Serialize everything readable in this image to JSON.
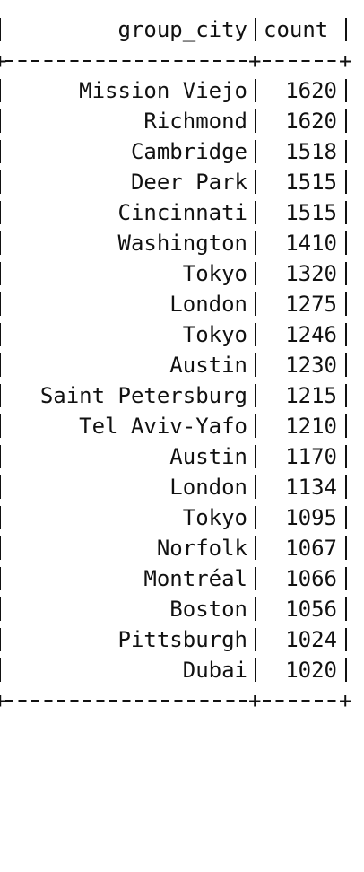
{
  "table": {
    "header": {
      "group_city": "group_city",
      "count": "count"
    },
    "separator_char": "+",
    "rows": [
      {
        "group_city": "Mission Viejo",
        "count": "1620"
      },
      {
        "group_city": "Richmond",
        "count": "1620"
      },
      {
        "group_city": "Cambridge",
        "count": "1518"
      },
      {
        "group_city": "Deer Park",
        "count": "1515"
      },
      {
        "group_city": "Cincinnati",
        "count": "1515"
      },
      {
        "group_city": "Washington",
        "count": "1410"
      },
      {
        "group_city": "Tokyo",
        "count": "1320"
      },
      {
        "group_city": "London",
        "count": "1275"
      },
      {
        "group_city": "Tokyo",
        "count": "1246"
      },
      {
        "group_city": "Austin",
        "count": "1230"
      },
      {
        "group_city": "Saint Petersburg",
        "count": "1215"
      },
      {
        "group_city": "Tel Aviv-Yafo",
        "count": "1210"
      },
      {
        "group_city": "Austin",
        "count": "1170"
      },
      {
        "group_city": "London",
        "count": "1134"
      },
      {
        "group_city": "Tokyo",
        "count": "1095"
      },
      {
        "group_city": "Norfolk",
        "count": "1067"
      },
      {
        "group_city": "Montréal",
        "count": "1066"
      },
      {
        "group_city": "Boston",
        "count": "1056"
      },
      {
        "group_city": "Pittsburgh",
        "count": "1024"
      },
      {
        "group_city": "Dubai",
        "count": "1020"
      }
    ]
  }
}
